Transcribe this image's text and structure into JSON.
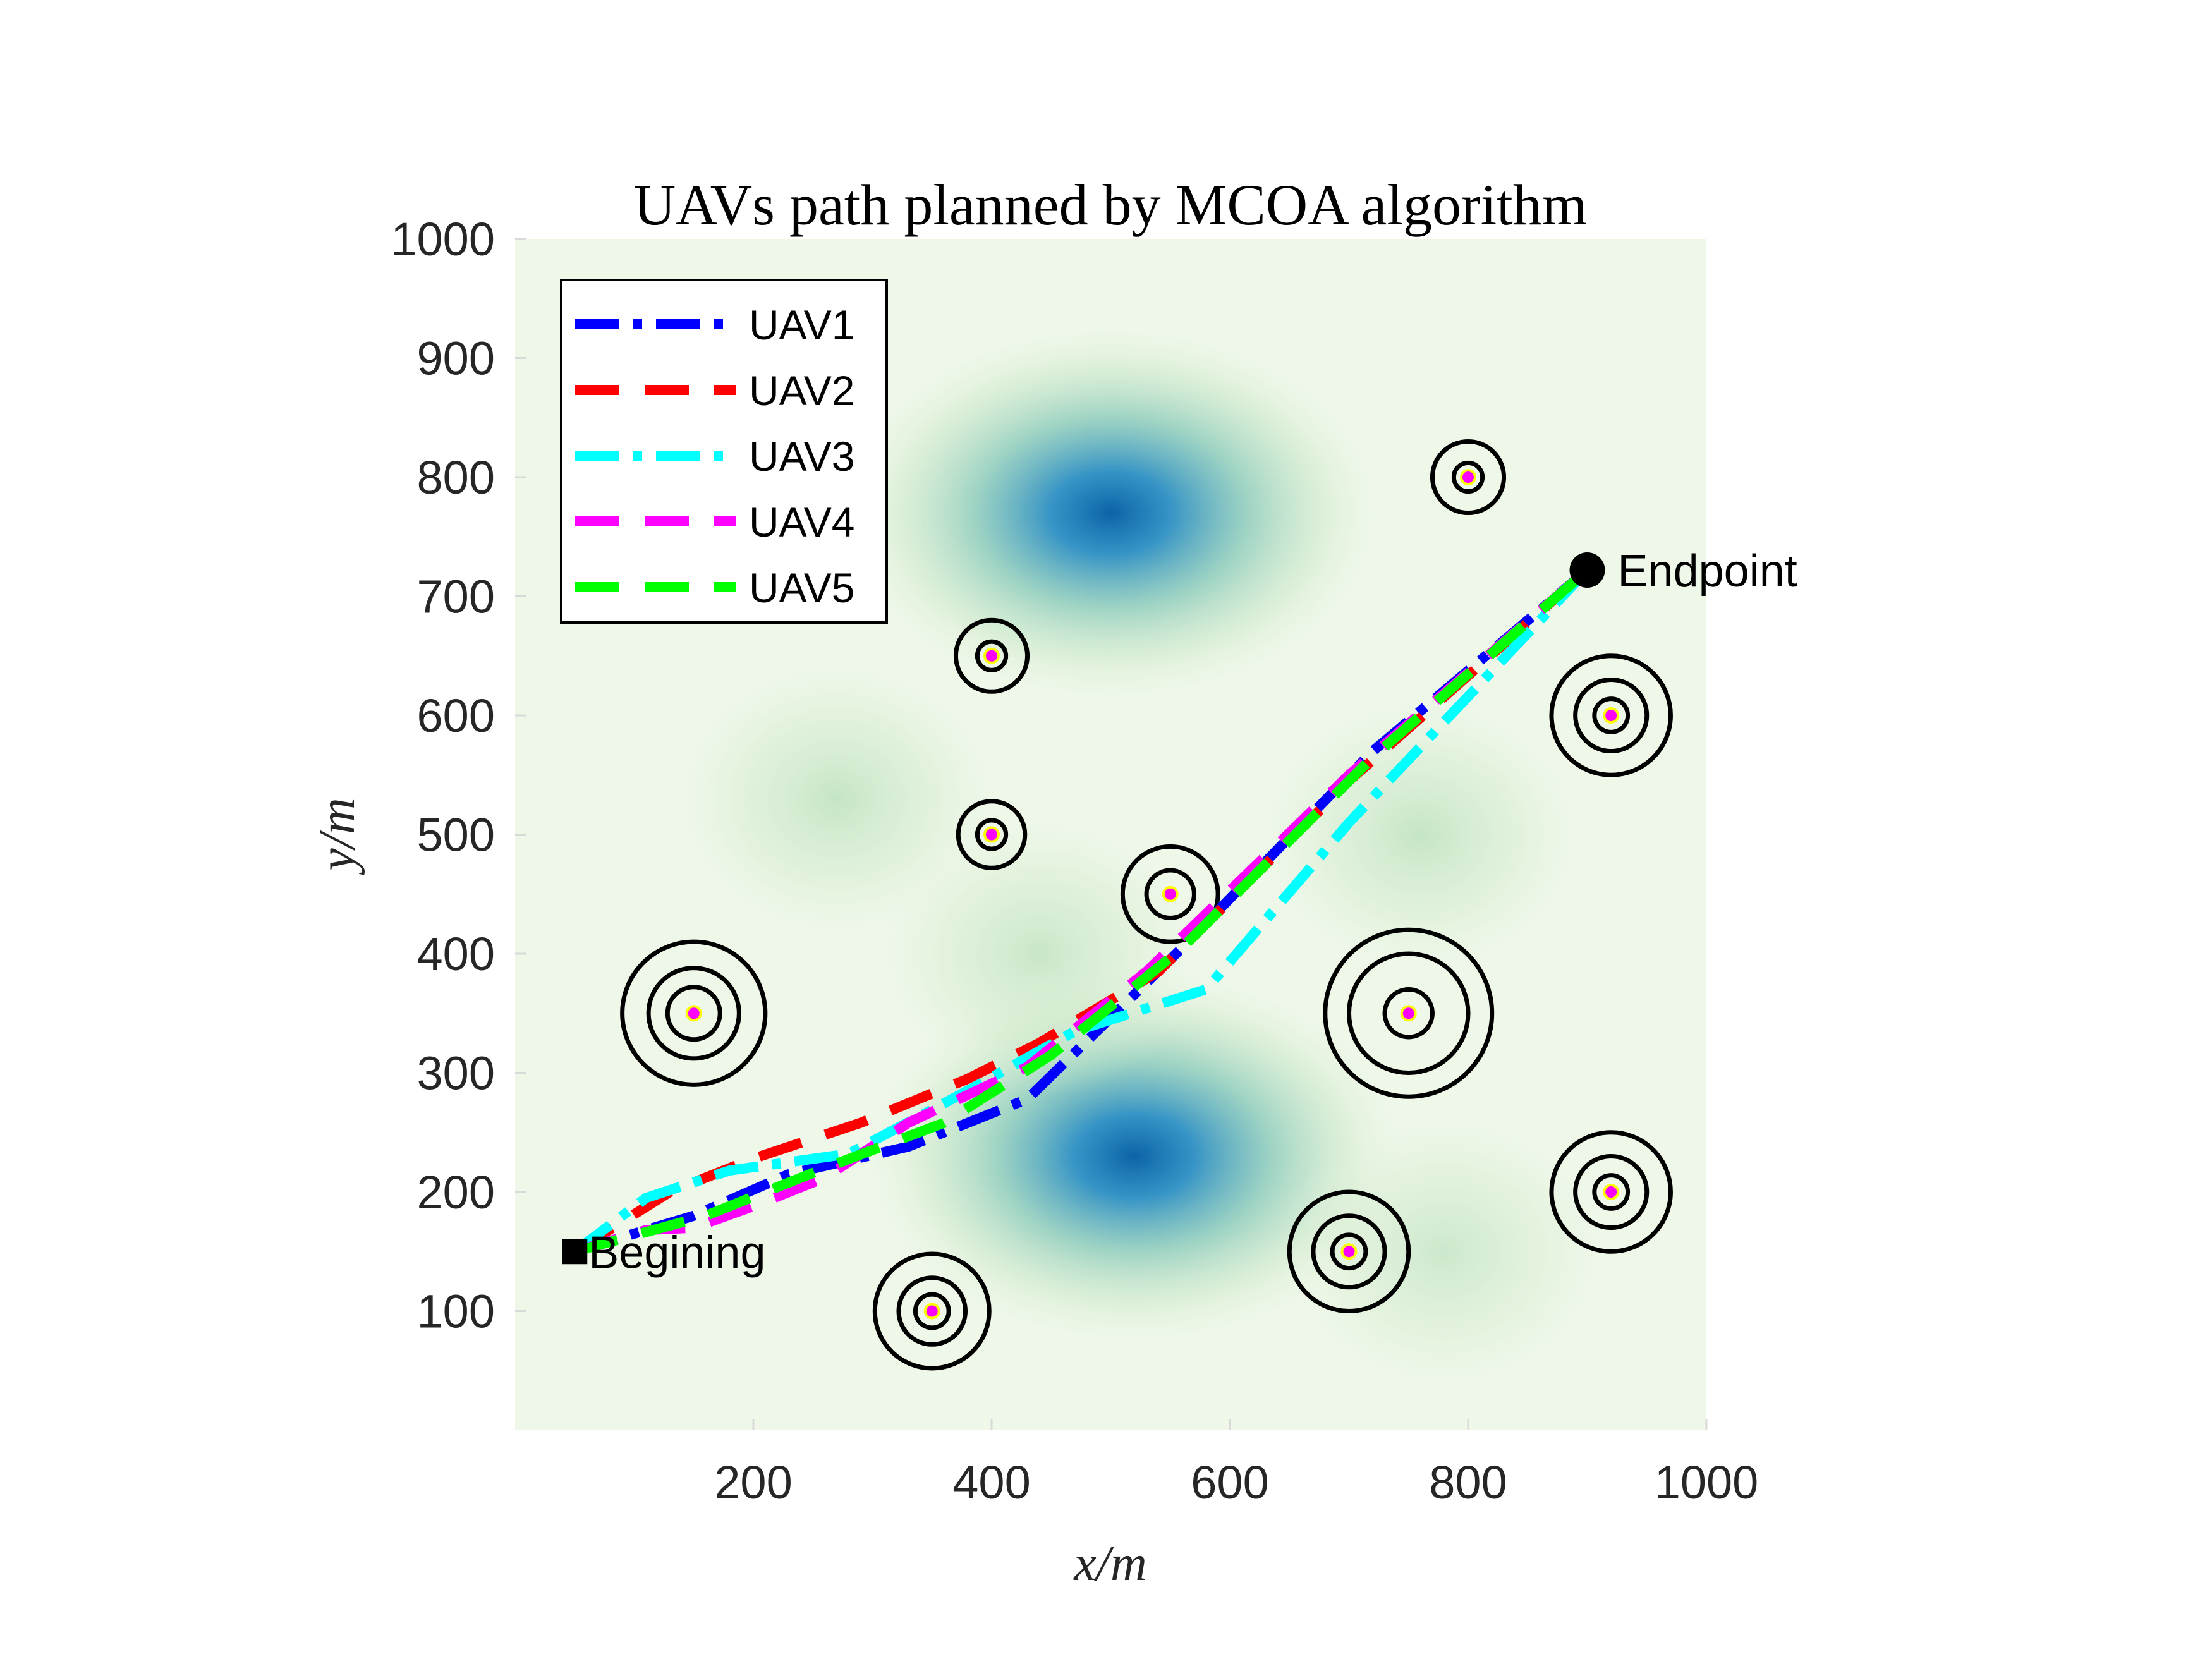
{
  "chart_data": {
    "type": "line",
    "title": "UAVs path planned by MCOA algorithm",
    "xlabel": "x/m",
    "ylabel": "y/m",
    "xlim": [
      0,
      1000
    ],
    "ylim": [
      0,
      1000
    ],
    "xticks": [
      200,
      400,
      600,
      800,
      1000
    ],
    "yticks": [
      100,
      200,
      300,
      400,
      500,
      600,
      700,
      800,
      900,
      1000
    ],
    "legend_position": "top-left",
    "start": {
      "label": "Begining",
      "x": 50,
      "y": 150
    },
    "end": {
      "label": "Endpoint",
      "x": 900,
      "y": 722
    },
    "series": [
      {
        "name": "UAV1",
        "color": "#0000ff",
        "dash": "dashdot",
        "points": [
          [
            50,
            150
          ],
          [
            150,
            180
          ],
          [
            230,
            215
          ],
          [
            330,
            238
          ],
          [
            430,
            278
          ],
          [
            560,
            405
          ],
          [
            720,
            570
          ],
          [
            900,
            722
          ]
        ]
      },
      {
        "name": "UAV2",
        "color": "#ff0000",
        "dash": "dashed",
        "points": [
          [
            50,
            150
          ],
          [
            130,
            200
          ],
          [
            200,
            228
          ],
          [
            290,
            258
          ],
          [
            380,
            295
          ],
          [
            440,
            325
          ],
          [
            540,
            385
          ],
          [
            700,
            545
          ],
          [
            900,
            722
          ]
        ]
      },
      {
        "name": "UAV3",
        "color": "#00ffff",
        "dash": "dashdot",
        "points": [
          [
            50,
            150
          ],
          [
            110,
            195
          ],
          [
            180,
            218
          ],
          [
            280,
            232
          ],
          [
            380,
            285
          ],
          [
            470,
            335
          ],
          [
            580,
            370
          ],
          [
            700,
            510
          ],
          [
            900,
            722
          ]
        ]
      },
      {
        "name": "UAV4",
        "color": "#ff00ff",
        "dash": "dashed",
        "points": [
          [
            50,
            150
          ],
          [
            110,
            168
          ],
          [
            150,
            170
          ],
          [
            200,
            188
          ],
          [
            260,
            212
          ],
          [
            330,
            258
          ],
          [
            430,
            305
          ],
          [
            530,
            385
          ],
          [
            700,
            550
          ],
          [
            900,
            722
          ]
        ]
      },
      {
        "name": "UAV5",
        "color": "#00ff00",
        "dash": "dashed",
        "points": [
          [
            50,
            150
          ],
          [
            160,
            180
          ],
          [
            260,
            220
          ],
          [
            360,
            258
          ],
          [
            450,
            315
          ],
          [
            560,
            405
          ],
          [
            720,
            565
          ],
          [
            900,
            722
          ]
        ]
      }
    ],
    "threats": [
      {
        "x": 150,
        "y": 350,
        "radii": [
          22,
          38,
          60
        ]
      },
      {
        "x": 400,
        "y": 650,
        "radii": [
          12,
          30
        ]
      },
      {
        "x": 400,
        "y": 500,
        "radii": [
          12,
          28
        ]
      },
      {
        "x": 350,
        "y": 100,
        "radii": [
          14,
          28,
          48
        ]
      },
      {
        "x": 550,
        "y": 450,
        "radii": [
          20,
          40
        ]
      },
      {
        "x": 750,
        "y": 350,
        "radii": [
          20,
          50,
          70
        ]
      },
      {
        "x": 700,
        "y": 150,
        "radii": [
          14,
          30,
          50
        ]
      },
      {
        "x": 800,
        "y": 800,
        "radii": [
          12,
          30
        ]
      },
      {
        "x": 920,
        "y": 600,
        "radii": [
          14,
          30,
          50
        ]
      },
      {
        "x": 920,
        "y": 200,
        "radii": [
          14,
          30,
          50
        ]
      }
    ],
    "terrain_peaks": [
      {
        "x": 500,
        "y": 770,
        "intensity": 1.0
      },
      {
        "x": 520,
        "y": 230,
        "intensity": 0.8
      },
      {
        "x": 270,
        "y": 530,
        "intensity": 0.45
      },
      {
        "x": 440,
        "y": 400,
        "intensity": 0.4
      },
      {
        "x": 760,
        "y": 500,
        "intensity": 0.45
      },
      {
        "x": 780,
        "y": 150,
        "intensity": 0.35
      }
    ]
  }
}
